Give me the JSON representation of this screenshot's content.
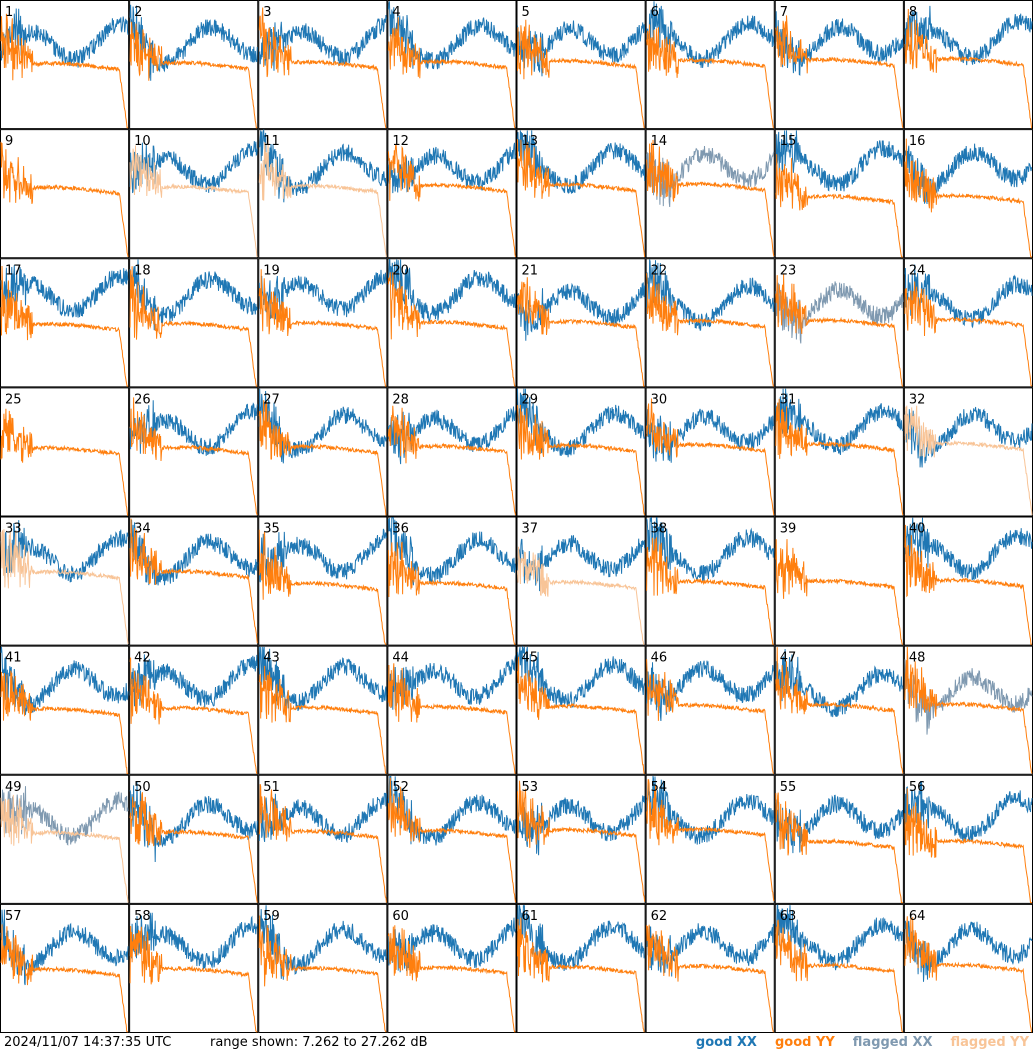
{
  "chart_data": {
    "type": "line",
    "panels": 64,
    "grid": "8x8",
    "y_range_db": [
      7.262,
      27.262
    ],
    "colors": {
      "good_xx": "#1f77b4",
      "good_yy": "#ff7f0e",
      "flagged_xx": "#7f99b0",
      "flagged_yy": "#f8c497"
    },
    "panel_labels": [
      "1",
      "2",
      "3",
      "4",
      "5",
      "6",
      "7",
      "8",
      "9",
      "10",
      "11",
      "12",
      "13",
      "14",
      "15",
      "16",
      "17",
      "18",
      "19",
      "20",
      "21",
      "22",
      "23",
      "24",
      "25",
      "26",
      "27",
      "28",
      "29",
      "30",
      "31",
      "32",
      "33",
      "34",
      "35",
      "36",
      "37",
      "38",
      "39",
      "40",
      "41",
      "42",
      "43",
      "44",
      "45",
      "46",
      "47",
      "48",
      "49",
      "50",
      "51",
      "52",
      "53",
      "54",
      "55",
      "56",
      "57",
      "58",
      "59",
      "60",
      "61",
      "62",
      "63",
      "64"
    ],
    "flagged_xx_panels": [
      14,
      23,
      48,
      49
    ],
    "flagged_yy_panels": [
      10,
      11,
      32,
      33,
      37,
      49
    ],
    "yy_dominant_panels": [
      9,
      25,
      39
    ]
  },
  "footer": {
    "timestamp": "2024/11/07 14:37:35 UTC",
    "range": "range shown: 7.262 to 27.262 dB"
  },
  "legend": {
    "good_xx": "good XX",
    "good_yy": "good YY",
    "flagged_xx": "flagged XX",
    "flagged_yy": "flagged YY"
  }
}
